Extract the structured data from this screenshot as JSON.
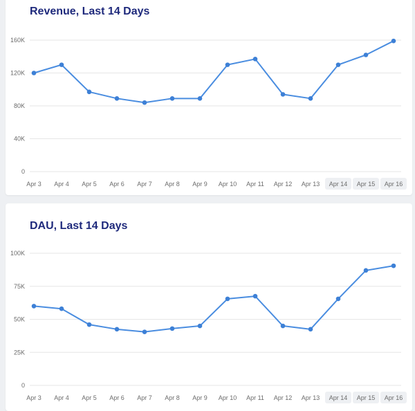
{
  "chart_data": [
    {
      "type": "line",
      "title": "Revenue, Last 14 Days",
      "xlabel": "",
      "ylabel": "",
      "categories": [
        "Apr 3",
        "Apr 4",
        "Apr 5",
        "Apr 6",
        "Apr 7",
        "Apr 8",
        "Apr 9",
        "Apr 10",
        "Apr 11",
        "Apr 12",
        "Apr 13",
        "Apr 14",
        "Apr 15",
        "Apr 16"
      ],
      "yticks": [
        "0",
        "40K",
        "80K",
        "120K",
        "160K"
      ],
      "ylim": [
        0,
        160000
      ],
      "grid": true,
      "highlighted_categories": [
        "Apr 14",
        "Apr 15",
        "Apr 16"
      ],
      "line_color": "#4a8de0",
      "series": [
        {
          "values": [
            120000,
            130000,
            97000,
            89000,
            84000,
            89000,
            89000,
            130000,
            137000,
            94000,
            89000,
            130000,
            142000,
            159000
          ]
        }
      ]
    },
    {
      "type": "line",
      "title": "DAU, Last 14 Days",
      "xlabel": "",
      "ylabel": "",
      "categories": [
        "Apr 3",
        "Apr 4",
        "Apr 5",
        "Apr 6",
        "Apr 7",
        "Apr 8",
        "Apr 9",
        "Apr 10",
        "Apr 11",
        "Apr 12",
        "Apr 13",
        "Apr 14",
        "Apr 15",
        "Apr 16"
      ],
      "yticks": [
        "0",
        "25K",
        "50K",
        "75K",
        "100K"
      ],
      "ylim": [
        0,
        100000
      ],
      "grid": true,
      "highlighted_categories": [
        "Apr 14",
        "Apr 15",
        "Apr 16"
      ],
      "line_color": "#4a8de0",
      "series": [
        {
          "values": [
            60000,
            58000,
            46000,
            42500,
            40500,
            43000,
            45000,
            65500,
            67500,
            45000,
            42500,
            65500,
            87000,
            90500
          ]
        }
      ]
    }
  ]
}
